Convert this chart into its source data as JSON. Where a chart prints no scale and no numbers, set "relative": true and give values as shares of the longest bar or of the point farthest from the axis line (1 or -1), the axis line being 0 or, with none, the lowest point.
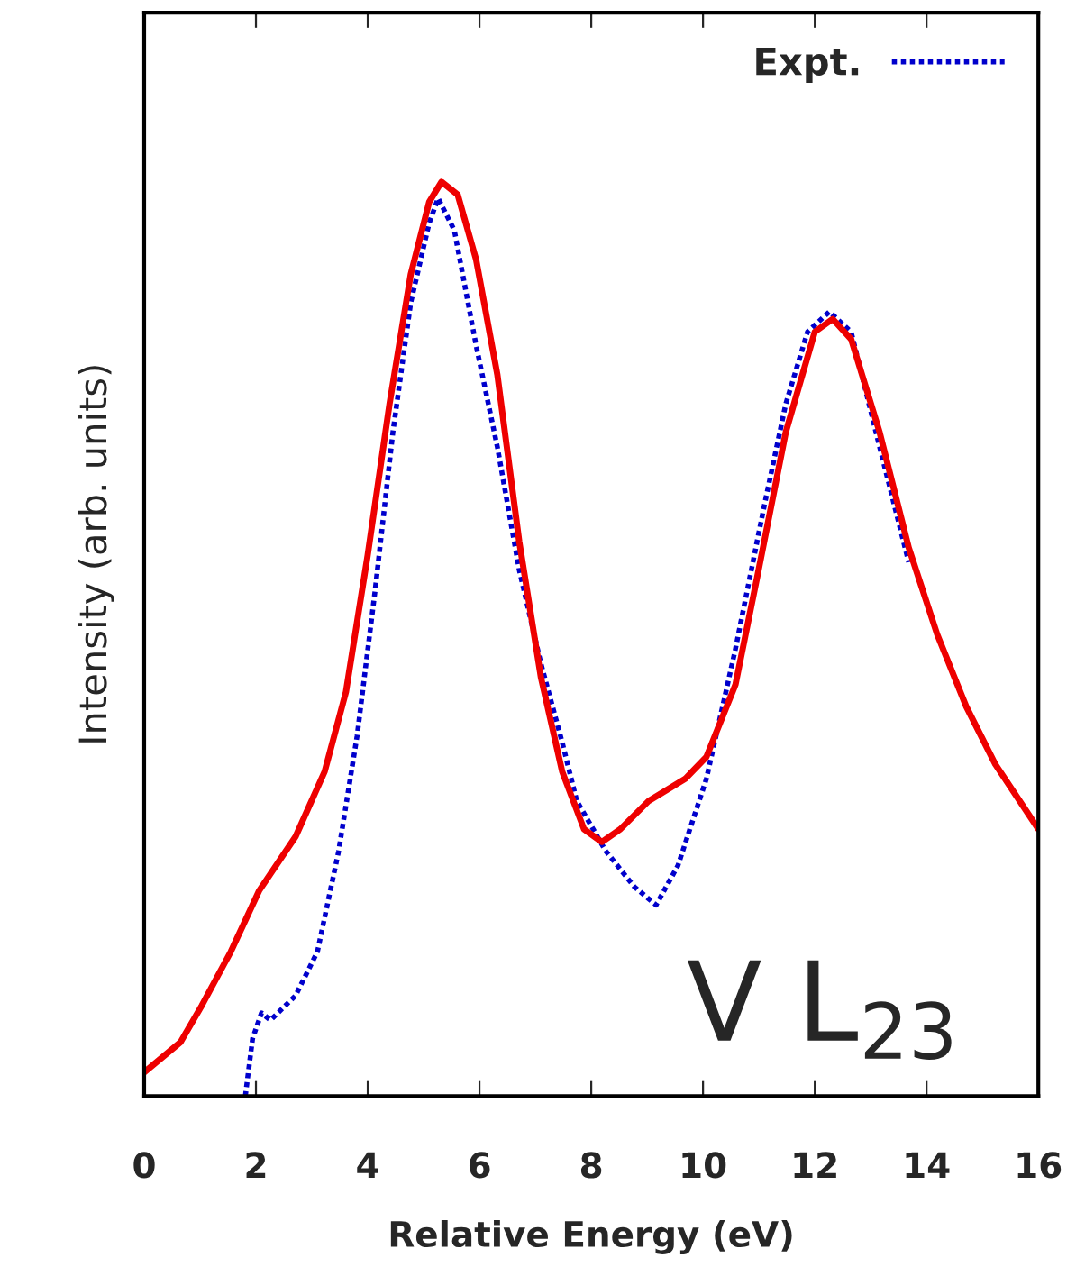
{
  "chart_data": {
    "type": "line",
    "relative": true,
    "xlabel": "Relative Energy (eV)",
    "ylabel": "Intensity (arb. units)",
    "xlim": [
      0,
      16
    ],
    "xticks": [
      0,
      2,
      4,
      6,
      8,
      10,
      12,
      14,
      16
    ],
    "grid": false,
    "legend": "top right",
    "tick_labels": "x",
    "annotations": [
      "V L$_{23}$"
    ],
    "series": [
      {
        "name": "Expt.",
        "color": "#0000cc",
        "line_style": "dotted",
        "x": [
          1.81,
          1.94,
          2.1,
          2.26,
          2.71,
          3.1,
          3.48,
          3.81,
          4.13,
          4.45,
          4.77,
          5.1,
          5.26,
          5.55,
          5.94,
          6.32,
          6.71,
          7.1,
          7.48,
          7.74,
          8.26,
          8.77,
          9.16,
          9.55,
          10.06,
          10.58,
          11.1,
          11.48,
          11.87,
          12.26,
          12.65,
          13.16,
          13.68
        ],
        "values": [
          0,
          0.063,
          0.091,
          0.083,
          0.11,
          0.158,
          0.268,
          0.394,
          0.552,
          0.726,
          0.868,
          0.955,
          0.982,
          0.947,
          0.821,
          0.71,
          0.576,
          0.473,
          0.387,
          0.323,
          0.268,
          0.229,
          0.209,
          0.252,
          0.347,
          0.489,
          0.647,
          0.757,
          0.836,
          0.858,
          0.836,
          0.71,
          0.584
        ]
      },
      {
        "color": "#ee0000",
        "line_style": "solid",
        "x": [
          0,
          0.65,
          1.03,
          1.55,
          2.06,
          2.71,
          3.23,
          3.61,
          4.0,
          4.39,
          4.77,
          5.1,
          5.32,
          5.61,
          5.94,
          6.32,
          6.71,
          7.1,
          7.48,
          7.87,
          8.19,
          8.52,
          9.03,
          9.68,
          10.06,
          10.58,
          10.97,
          11.48,
          12.0,
          12.32,
          12.65,
          13.16,
          13.68,
          14.19,
          14.71,
          15.23,
          15.74,
          16
        ],
        "values": [
          0.026,
          0.059,
          0.099,
          0.158,
          0.225,
          0.284,
          0.355,
          0.442,
          0.592,
          0.757,
          0.899,
          0.978,
          1.0,
          0.986,
          0.915,
          0.789,
          0.607,
          0.458,
          0.355,
          0.292,
          0.278,
          0.292,
          0.323,
          0.347,
          0.371,
          0.45,
          0.568,
          0.726,
          0.836,
          0.85,
          0.828,
          0.726,
          0.6,
          0.505,
          0.426,
          0.363,
          0.316,
          0.292
        ]
      }
    ]
  }
}
